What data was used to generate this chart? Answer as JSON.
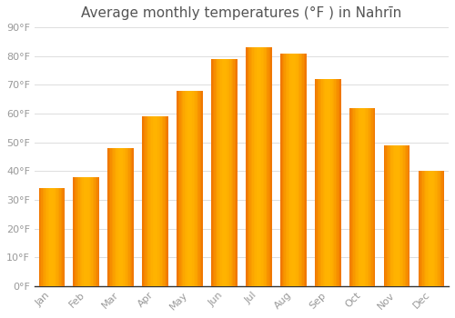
{
  "title": "Average monthly temperatures (°F ) in Nahrīn",
  "months": [
    "Jan",
    "Feb",
    "Mar",
    "Apr",
    "May",
    "Jun",
    "Jul",
    "Aug",
    "Sep",
    "Oct",
    "Nov",
    "Dec"
  ],
  "values": [
    34,
    38,
    48,
    59,
    68,
    79,
    83,
    81,
    72,
    62,
    49,
    40
  ],
  "bar_color_center": "#FFB300",
  "bar_color_edge": "#F07800",
  "background_color": "#FFFFFF",
  "grid_color": "#DDDDDD",
  "ylim": [
    0,
    90
  ],
  "yticks": [
    0,
    10,
    20,
    30,
    40,
    50,
    60,
    70,
    80,
    90
  ],
  "title_fontsize": 11,
  "tick_fontsize": 8,
  "tick_color": "#999999",
  "title_color": "#555555"
}
